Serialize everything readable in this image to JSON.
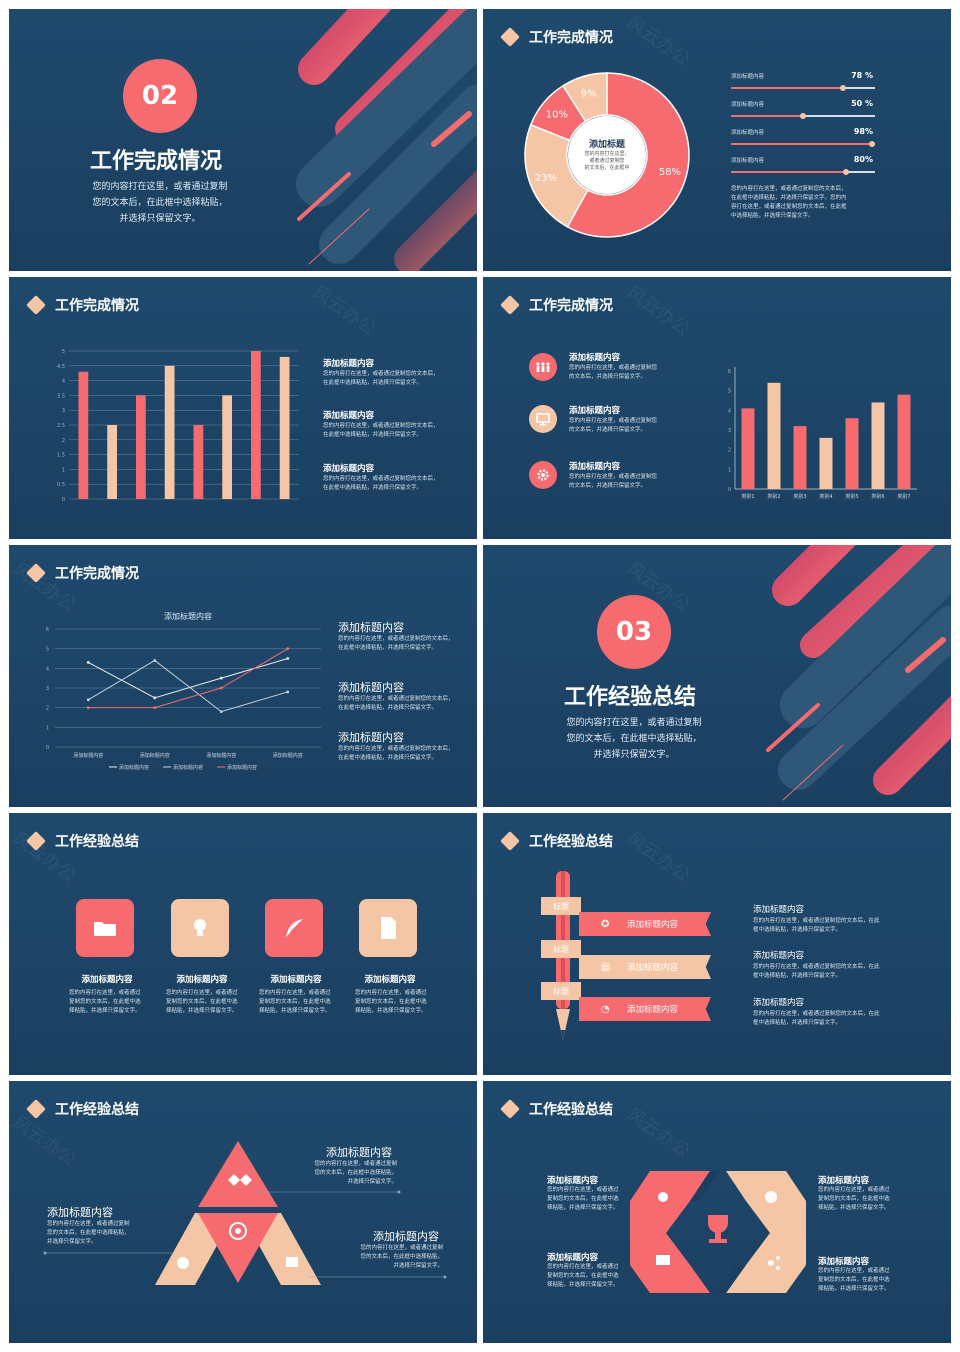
{
  "slide1": {
    "number": "02",
    "title": "工作完成情况",
    "lines": [
      "您的内容打在这里，或者通过复制",
      "您的文本后，在此框中选择粘贴，",
      "并选择只保留文字。"
    ]
  },
  "slide2": {
    "header": "工作完成情况",
    "center_title": "添加标题",
    "center_text": [
      "您的内容打在这里，",
      "或者通过复制您",
      "的文本后，在此框中",
      "选择只保留文字。"
    ],
    "donut": [
      {
        "label": "58%",
        "value": 58,
        "color": "#f56b6f"
      },
      {
        "label": "23%",
        "value": 23,
        "color": "#f5c6a5"
      },
      {
        "label": "10%",
        "value": 10,
        "color": "#f56b6f"
      },
      {
        "label": "9%",
        "value": 9,
        "color": "#f5c6a5"
      }
    ],
    "bars": [
      {
        "label": "添加标题内容",
        "pct": "78 %",
        "value": 78
      },
      {
        "label": "添加标题内容",
        "pct": "50 %",
        "value": 50
      },
      {
        "label": "添加标题内容",
        "pct": "98%",
        "value": 98
      },
      {
        "label": "添加标题内容",
        "pct": "80%",
        "value": 80
      }
    ],
    "para": [
      "您的内容打在这里，或者通过复制您的文本后，",
      "在此框中选择粘贴，并选择只保留文字。您的内",
      "容打在这里，或者通过复制您的文本后，在此框",
      "中选择粘贴，并选择只保留文字。"
    ]
  },
  "slide3": {
    "header": "工作完成情况",
    "items": [
      {
        "title": "添加标题内容",
        "text": [
          "您的内容打在这里，或者通过复制您的文本后，",
          "在此框中选择粘贴，并选择只保留文字。"
        ]
      },
      {
        "title": "添加标题内容",
        "text": [
          "您的内容打在这里，或者通过复制您的文本后，",
          "在此框中选择粘贴，并选择只保留文字。"
        ]
      },
      {
        "title": "添加标题内容",
        "text": [
          "您的内容打在这里，或者通过复制您的文本后，",
          "在此框中选择粘贴，并选择只保留文字。"
        ]
      }
    ]
  },
  "slide4": {
    "header": "工作完成情况",
    "items": [
      {
        "title": "添加标题内容",
        "text": [
          "您的内容打在这里，或者通过复制您",
          "的文本后，并选择只保留文字。"
        ],
        "icon": "people-icon"
      },
      {
        "title": "添加标题内容",
        "text": [
          "您的内容打在这里，或者通过复制您",
          "的文本后，并选择只保留文字。"
        ],
        "icon": "monitor-icon"
      },
      {
        "title": "添加标题内容",
        "text": [
          "您的内容打在这里，或者通过复制您",
          "的文本后，并选择只保留文字。"
        ],
        "icon": "gear-icon"
      }
    ]
  },
  "slide5": {
    "header": "工作完成情况",
    "items": [
      {
        "title": "添加标题内容",
        "text": [
          "您的内容打在这里，或者通过复制您的文本后，",
          "在此框中选择粘贴，并选择只保留文字。"
        ]
      },
      {
        "title": "添加标题内容",
        "text": [
          "您的内容打在这里，或者通过复制您的文本后，",
          "在此框中选择粘贴，并选择只保留文字。"
        ]
      },
      {
        "title": "添加标题内容",
        "text": [
          "您的内容打在这里，或者通过复制您的文本后，",
          "在此框中选择粘贴，并选择只保留文字。"
        ]
      }
    ]
  },
  "slide6": {
    "number": "03",
    "title": "工作经验总结",
    "lines": [
      "您的内容打在这里，或者通过复制",
      "您的文本后，在此框中选择粘贴，",
      "并选择只保留文字。"
    ]
  },
  "slide7": {
    "header": "工作经验总结",
    "items": [
      {
        "title": "添加标题内容",
        "text": [
          "您的内容打在这里，或者通过",
          "复制您的文本后，在此框中选",
          "择粘贴，并选择只保留文字。"
        ],
        "color": "#f56b6f",
        "icon": "folder-icon"
      },
      {
        "title": "添加标题内容",
        "text": [
          "您的内容打在这里，或者通过",
          "复制您的文本后，在此框中选",
          "择粘贴，并选择只保留文字。"
        ],
        "color": "#f5c6a5",
        "icon": "lightbulb-icon"
      },
      {
        "title": "添加标题内容",
        "text": [
          "您的内容打在这里，或者通过",
          "复制您的文本后，在此框中选",
          "择粘贴，并选择只保留文字。"
        ],
        "color": "#f56b6f",
        "icon": "quill-icon"
      },
      {
        "title": "添加标题内容",
        "text": [
          "您的内容打在这里，或者通过",
          "复制您的文本后，在此框中选",
          "择粘贴，并选择只保留文字。"
        ],
        "color": "#f5c6a5",
        "icon": "document-icon"
      }
    ]
  },
  "slide8": {
    "header": "工作经验总结",
    "tags": [
      "标题",
      "标题",
      "标题"
    ],
    "ribbons": [
      "添加标题内容",
      "添加标题内容",
      "添加标题内容"
    ],
    "items": [
      {
        "title": "添加标题内容",
        "text": [
          "您的内容打在这里，或者通过复制您的文本后，在此",
          "框中选择粘贴，并选择只保留文字。"
        ]
      },
      {
        "title": "添加标题内容",
        "text": [
          "您的内容打在这里，或者通过复制您的文本后，在此",
          "框中选择粘贴，并选择只保留文字。"
        ]
      },
      {
        "title": "添加标题内容",
        "text": [
          "您的内容打在这里，或者通过复制您的文本后，在此",
          "框中选择粘贴，并选择只保留文字。"
        ]
      }
    ]
  },
  "slide9": {
    "header": "工作经验总结",
    "items": [
      {
        "title": "添加标题内容",
        "text": [
          "您的内容打在这里，或者通过复制",
          "您的文本后，在此框中选择粘贴，",
          "并选择只保留文字。"
        ]
      },
      {
        "title": "添加标题内容",
        "text": [
          "您的内容打在这里，或者通过复制",
          "您的文本后，在此框中选择粘贴，",
          "并选择只保留文字。"
        ]
      },
      {
        "title": "添加标题内容",
        "text": [
          "您的内容打在这里，或者通过复制",
          "您的文本后，在此框中选择粘贴，",
          "并选择只保留文字。"
        ]
      }
    ]
  },
  "slide10": {
    "header": "工作经验总结",
    "items": [
      {
        "title": "添加标题内容",
        "text": [
          "您的内容打在这里，或者通过",
          "复制您的文本后，在此框中选",
          "择粘贴，并选择只保留文字。"
        ]
      },
      {
        "title": "添加标题内容",
        "text": [
          "您的内容打在这里，或者通过",
          "复制您的文本后，在此框中选",
          "择粘贴，并选择只保留文字。"
        ]
      },
      {
        "title": "添加标题内容",
        "text": [
          "您的内容打在这里，或者通过",
          "复制您的文本后，在此框中选",
          "择粘贴，并选择只保留文字。"
        ]
      },
      {
        "title": "添加标题内容",
        "text": [
          "您的内容打在这里，或者通过",
          "复制您的文本后，在此框中选",
          "择粘贴，并选择只保留文字。"
        ]
      }
    ]
  },
  "watermark": "风云办公",
  "chart_data": [
    {
      "type": "bar",
      "ylim": [
        0,
        5
      ],
      "yticks": [
        "0",
        "0.5",
        "1",
        "1.5",
        "2",
        "2.5",
        "3",
        "3.5",
        "4",
        "4.5",
        "5"
      ],
      "values": [
        4.3,
        2.5,
        3.5,
        4.5,
        2.5,
        3.5,
        5,
        4.8
      ],
      "colors": [
        "#f56b6f",
        "#f5c6a5",
        "#f56b6f",
        "#f5c6a5",
        "#f56b6f",
        "#f5c6a5",
        "#f56b6f",
        "#f5c6a5"
      ]
    },
    {
      "type": "bar",
      "ylim": [
        0,
        6
      ],
      "yticks": [
        "0",
        "1",
        "2",
        "3",
        "4",
        "5",
        "6"
      ],
      "categories": [
        "类别1",
        "类别2",
        "类别3",
        "类别4",
        "类别5",
        "类别6",
        "类别7"
      ],
      "values": [
        4.1,
        5.4,
        3.2,
        2.6,
        3.6,
        4.4,
        4.8
      ],
      "colors": [
        "#f56b6f",
        "#f5c6a5",
        "#f56b6f",
        "#f5c6a5",
        "#f56b6f",
        "#f5c6a5",
        "#f56b6f"
      ]
    },
    {
      "type": "line",
      "title": "添加标题内容",
      "ylim": [
        0,
        6
      ],
      "yticks": [
        "0",
        "1",
        "2",
        "3",
        "4",
        "5",
        "6"
      ],
      "categories": [
        "添加标题内容",
        "添加标题内容",
        "添加标题内容",
        "添加标题内容"
      ],
      "series": [
        {
          "name": "添加标题内容",
          "values": [
            4.3,
            2.5,
            3.5,
            4.5
          ],
          "color": "#e8ecef"
        },
        {
          "name": "添加标题内容",
          "values": [
            2.4,
            4.4,
            1.8,
            2.8
          ],
          "color": "#c9d3dc"
        },
        {
          "name": "添加标题内容",
          "values": [
            2,
            2,
            3,
            5
          ],
          "color": "#f56b6f"
        }
      ]
    }
  ]
}
